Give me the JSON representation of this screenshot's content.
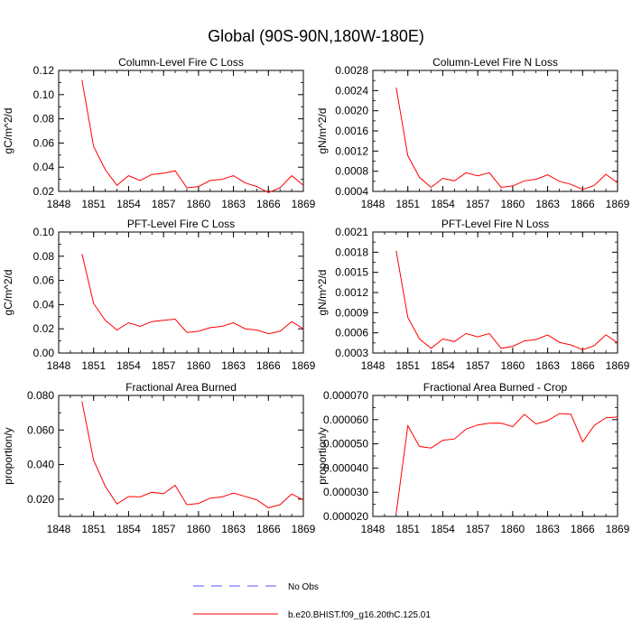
{
  "title": "Global (90S-90N,180W-180E)",
  "colors": {
    "series": "#ff0000",
    "obs": "#5555ff",
    "axis": "#000000"
  },
  "legend": {
    "position": "bottom-center",
    "items": [
      {
        "label": "No Obs",
        "style": "dashed",
        "color": "#5555ff"
      },
      {
        "label": "b.e20.BHIST.f09_g16.20thC.125.01",
        "style": "solid",
        "color": "#ff0000"
      }
    ]
  },
  "chart_data": [
    {
      "type": "line",
      "title": "Column-Level Fire C Loss",
      "ylabel": "gC/m^2/d",
      "xlim": [
        1848,
        1869
      ],
      "ylim": [
        0.02,
        0.12
      ],
      "xticks": [
        "1848",
        "1851",
        "1854",
        "1857",
        "1860",
        "1863",
        "1866",
        "1869"
      ],
      "yticks": [
        "0.02",
        "0.04",
        "0.06",
        "0.08",
        "0.10",
        "0.12"
      ],
      "x": [
        1850,
        1851,
        1852,
        1853,
        1854,
        1855,
        1856,
        1857,
        1858,
        1859,
        1860,
        1861,
        1862,
        1863,
        1864,
        1865,
        1866,
        1867,
        1868,
        1869
      ],
      "series": [
        {
          "values": [
            0.112,
            0.057,
            0.038,
            0.025,
            0.033,
            0.029,
            0.034,
            0.035,
            0.037,
            0.023,
            0.024,
            0.029,
            0.03,
            0.033,
            0.027,
            0.024,
            0.019,
            0.023,
            0.033,
            0.025
          ]
        }
      ]
    },
    {
      "type": "line",
      "title": "Column-Level Fire N Loss",
      "ylabel": "gN/m^2/d",
      "xlim": [
        1848,
        1869
      ],
      "ylim": [
        0.0004,
        0.0028
      ],
      "xticks": [
        "1848",
        "1851",
        "1854",
        "1857",
        "1860",
        "1863",
        "1866",
        "1869"
      ],
      "yticks": [
        "0.0004",
        "0.0008",
        "0.0012",
        "0.0016",
        "0.0020",
        "0.0024",
        "0.0028"
      ],
      "x": [
        1850,
        1851,
        1852,
        1853,
        1854,
        1855,
        1856,
        1857,
        1858,
        1859,
        1860,
        1861,
        1862,
        1863,
        1864,
        1865,
        1866,
        1867,
        1868,
        1869
      ],
      "series": [
        {
          "values": [
            0.00246,
            0.00111,
            0.00068,
            0.00048,
            0.00066,
            0.00061,
            0.00077,
            0.00071,
            0.00077,
            0.00048,
            0.00051,
            0.00061,
            0.00064,
            0.00073,
            0.0006,
            0.00054,
            0.00044,
            0.00052,
            0.00074,
            0.00057
          ]
        }
      ]
    },
    {
      "type": "line",
      "title": "PFT-Level Fire C Loss",
      "ylabel": "gC/m^2/d",
      "xlim": [
        1848,
        1869
      ],
      "ylim": [
        0.0,
        0.1
      ],
      "xticks": [
        "1848",
        "1851",
        "1854",
        "1857",
        "1860",
        "1863",
        "1866",
        "1869"
      ],
      "yticks": [
        "0.00",
        "0.02",
        "0.04",
        "0.06",
        "0.08",
        "0.10"
      ],
      "x": [
        1850,
        1851,
        1852,
        1853,
        1854,
        1855,
        1856,
        1857,
        1858,
        1859,
        1860,
        1861,
        1862,
        1863,
        1864,
        1865,
        1866,
        1867,
        1868,
        1869
      ],
      "series": [
        {
          "values": [
            0.082,
            0.041,
            0.027,
            0.019,
            0.025,
            0.022,
            0.026,
            0.027,
            0.028,
            0.017,
            0.018,
            0.021,
            0.022,
            0.025,
            0.02,
            0.019,
            0.016,
            0.018,
            0.026,
            0.02
          ]
        }
      ]
    },
    {
      "type": "line",
      "title": "PFT-Level Fire N Loss",
      "ylabel": "gN/m^2/d",
      "xlim": [
        1848,
        1869
      ],
      "ylim": [
        0.0003,
        0.0021
      ],
      "xticks": [
        "1848",
        "1851",
        "1854",
        "1857",
        "1860",
        "1863",
        "1866",
        "1869"
      ],
      "yticks": [
        "0.0003",
        "0.0006",
        "0.0009",
        "0.0012",
        "0.0015",
        "0.0018",
        "0.0021"
      ],
      "x": [
        1850,
        1851,
        1852,
        1853,
        1854,
        1855,
        1856,
        1857,
        1858,
        1859,
        1860,
        1861,
        1862,
        1863,
        1864,
        1865,
        1866,
        1867,
        1868,
        1869
      ],
      "series": [
        {
          "values": [
            0.00182,
            0.00083,
            0.00051,
            0.00037,
            0.00051,
            0.00047,
            0.00059,
            0.00054,
            0.00059,
            0.00037,
            0.0004,
            0.00048,
            0.0005,
            0.00057,
            0.00046,
            0.00042,
            0.00035,
            0.00041,
            0.00057,
            0.00045
          ]
        }
      ]
    },
    {
      "type": "line",
      "title": "Fractional Area Burned",
      "ylabel": "proportion/y",
      "xlim": [
        1848,
        1869
      ],
      "ylim": [
        0.01,
        0.08
      ],
      "xticks": [
        "1848",
        "1851",
        "1854",
        "1857",
        "1860",
        "1863",
        "1866",
        "1869"
      ],
      "yticks": [
        "0.020",
        "0.040",
        "0.060",
        "0.080"
      ],
      "x": [
        1850,
        1851,
        1852,
        1853,
        1854,
        1855,
        1856,
        1857,
        1858,
        1859,
        1860,
        1861,
        1862,
        1863,
        1864,
        1865,
        1866,
        1867,
        1868,
        1869
      ],
      "series": [
        {
          "values": [
            0.0765,
            0.0425,
            0.0275,
            0.0172,
            0.0215,
            0.0213,
            0.024,
            0.0231,
            0.028,
            0.0168,
            0.0175,
            0.0206,
            0.0213,
            0.0235,
            0.0216,
            0.0196,
            0.015,
            0.0168,
            0.023,
            0.0195
          ]
        }
      ]
    },
    {
      "type": "line",
      "title": "Fractional Area Burned - Crop",
      "ylabel": "proportion/y",
      "xlim": [
        1848,
        1869
      ],
      "ylim": [
        2e-05,
        7e-05
      ],
      "xticks": [
        "1848",
        "1851",
        "1854",
        "1857",
        "1860",
        "1863",
        "1866",
        "1869"
      ],
      "yticks": [
        "0.000020",
        "0.000030",
        "0.000040",
        "0.000050",
        "0.000060",
        "0.000070"
      ],
      "x": [
        1850,
        1851,
        1852,
        1853,
        1854,
        1855,
        1856,
        1857,
        1858,
        1859,
        1860,
        1861,
        1862,
        1863,
        1864,
        1865,
        1866,
        1867,
        1868,
        1869
      ],
      "series": [
        {
          "values": [
            2.12e-05,
            5.75e-05,
            4.89e-05,
            4.83e-05,
            5.15e-05,
            5.2e-05,
            5.61e-05,
            5.78e-05,
            5.85e-05,
            5.86e-05,
            5.71e-05,
            6.22e-05,
            5.82e-05,
            5.96e-05,
            6.25e-05,
            6.22e-05,
            5.08e-05,
            5.76e-05,
            6.08e-05,
            6.11e-05
          ]
        }
      ]
    }
  ]
}
